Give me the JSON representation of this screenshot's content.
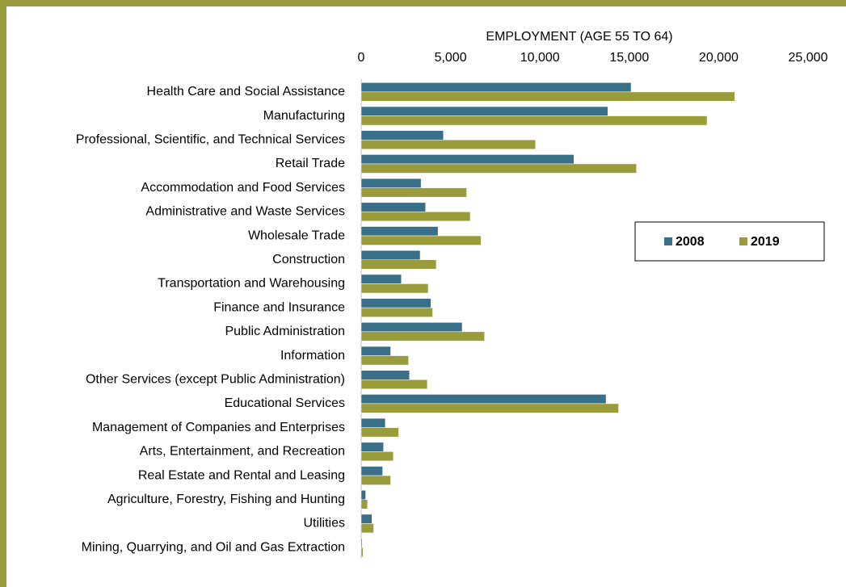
{
  "chart_data": {
    "type": "bar",
    "orientation": "horizontal",
    "x_axis_label": "EMPLOYMENT (AGE 55 TO 64)",
    "categories": [
      "Health Care and Social Assistance",
      "Manufacturing",
      "Professional, Scientific, and Technical Services",
      "Retail Trade",
      "Accommodation and Food Services",
      "Administrative and Waste Services",
      "Wholesale Trade",
      "Construction",
      "Transportation and Warehousing",
      "Finance and Insurance",
      "Public Administration",
      "Information",
      "Other Services (except Public Administration)",
      "Educational Services",
      "Management of Companies and Enterprises",
      "Arts, Entertainment, and Recreation",
      "Real Estate and Rental and Leasing",
      "Agriculture, Forestry, Fishing and Hunting",
      "Utilities",
      "Mining, Quarrying, and Oil and Gas Extraction"
    ],
    "series": [
      {
        "name": "2008",
        "color": "#3a6f8a",
        "values": [
          15100,
          13800,
          4600,
          11900,
          3350,
          3600,
          4300,
          3300,
          2250,
          3900,
          5650,
          1650,
          2700,
          13700,
          1350,
          1250,
          1200,
          250,
          600,
          50
        ]
      },
      {
        "name": "2019",
        "color": "#9a9b3a",
        "values": [
          20900,
          19350,
          9750,
          15400,
          5900,
          6100,
          6700,
          4200,
          3750,
          4000,
          6900,
          2650,
          3700,
          14400,
          2100,
          1800,
          1650,
          350,
          700,
          100
        ]
      }
    ],
    "xlim": [
      0,
      25000
    ],
    "xticks": [
      0,
      {
        "value": 5000,
        "label": "5,000"
      },
      {
        "value": 10000,
        "label": "10,000"
      },
      {
        "value": 15000,
        "label": "15,000"
      },
      {
        "value": 20000,
        "label": "20,000"
      },
      {
        "value": 25000,
        "label": "25,000"
      }
    ],
    "legend": "right"
  }
}
